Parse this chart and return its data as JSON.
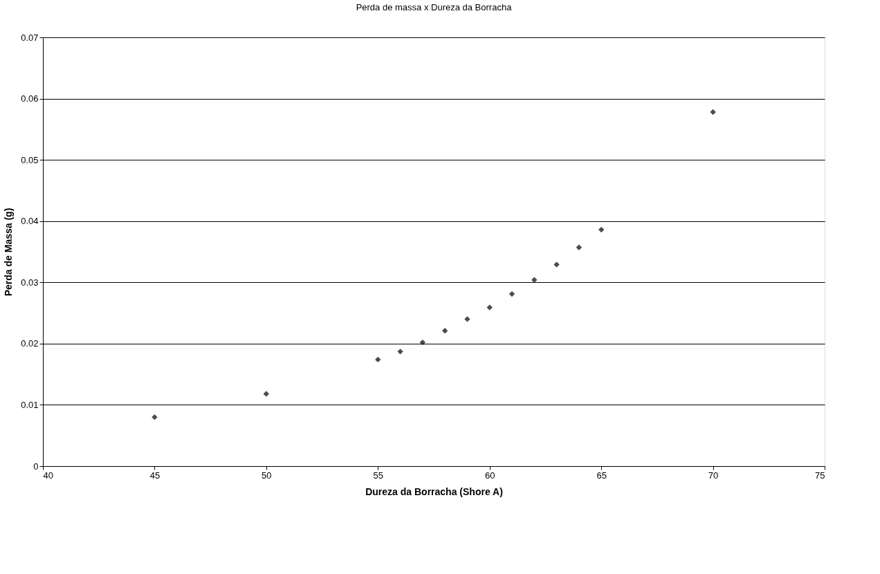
{
  "chart_data": {
    "type": "scatter",
    "title": "Perda de massa x Dureza da Borracha",
    "xlabel": "Dureza da Borracha (Shore A)",
    "ylabel": "Perda de Massa (g)",
    "x": [
      45,
      50,
      55,
      56,
      57,
      58,
      59,
      60,
      61,
      62,
      63,
      64,
      65,
      70
    ],
    "series": [
      {
        "color": "#000000",
        "values": [
          0.008,
          0.0118,
          0.0174,
          0.0187,
          0.0202,
          0.0221,
          0.024,
          0.0259,
          0.0281,
          0.0304,
          0.0329,
          0.0357,
          0.0386,
          0.0578
        ]
      }
    ],
    "xlim": [
      40,
      75
    ],
    "xticks": [
      40,
      45,
      50,
      55,
      60,
      65,
      70,
      75
    ],
    "ylim": [
      0,
      0.07
    ],
    "yticks": [
      0,
      0.01,
      0.02,
      0.03,
      0.04,
      0.05,
      0.06,
      0.07
    ],
    "grid": "y",
    "marker": "diamond",
    "legend": false
  }
}
